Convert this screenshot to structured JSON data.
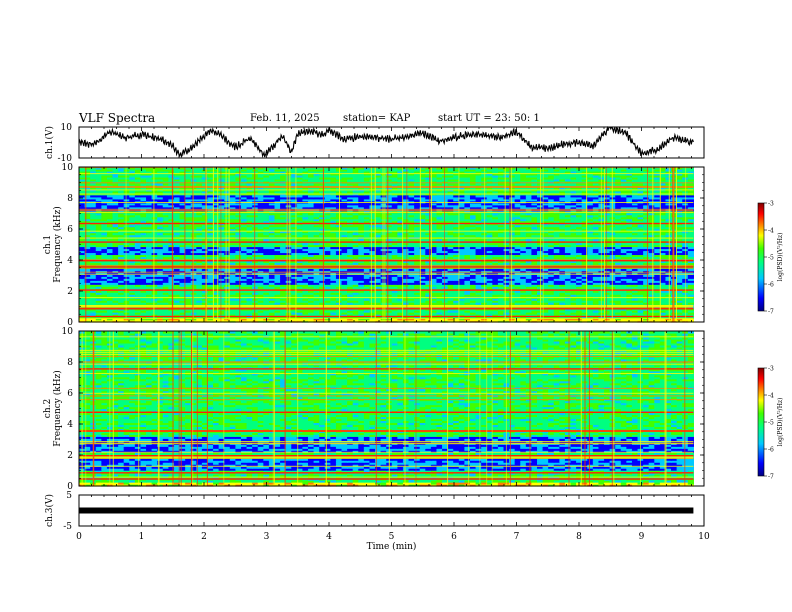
{
  "header": {
    "title": "VLF Spectra",
    "date": "Feb. 11, 2025",
    "station": "station= KAP",
    "start": "start  UT  =   23: 50: 1"
  },
  "chart_data": [
    {
      "type": "line",
      "name": "ch1-waveform",
      "ylabel": "ch.1(V)",
      "ylim": [
        -10,
        10
      ],
      "y_ticklabels": [
        "10",
        "-10"
      ],
      "xlim": [
        0,
        10
      ],
      "data_extent_min": 9.83,
      "x": [
        0,
        0.25,
        0.5,
        0.75,
        1,
        1.25,
        1.5,
        1.6,
        1.75,
        2,
        2.1,
        2.25,
        2.5,
        2.75,
        2.95,
        3,
        3.25,
        3.4,
        3.5,
        3.75,
        3.9,
        4,
        4.25,
        4.5,
        4.75,
        5,
        5.25,
        5.5,
        5.75,
        6,
        6.25,
        6.5,
        6.75,
        7,
        7.25,
        7.4,
        7.5,
        7.75,
        8,
        8.25,
        8.45,
        8.5,
        8.75,
        9,
        9.25,
        9.5,
        9.83
      ],
      "y": [
        0,
        -1,
        7,
        3,
        5,
        3,
        -2,
        -8,
        -5,
        4,
        8,
        5,
        -3,
        3,
        -8,
        -7,
        4,
        -6,
        6,
        7,
        5,
        8,
        2,
        4,
        3,
        2,
        4,
        6,
        1,
        3,
        5,
        5,
        3,
        7,
        -4,
        -3,
        -4,
        -1,
        0,
        -2,
        8,
        10,
        6,
        -7,
        -5,
        3,
        0
      ]
    },
    {
      "type": "heatmap",
      "name": "ch1-spectrogram",
      "ylabel": "ch.1",
      "ylabel2": "Frequency  (kHz)",
      "xlim": [
        0,
        10
      ],
      "ylim": [
        0,
        10
      ],
      "y_ticks": [
        0,
        2,
        4,
        6,
        8,
        10
      ],
      "data_extent_min": 9.83,
      "quiet_bands_khz": [
        [
          4.3,
          4.9
        ],
        [
          2.4,
          3.4
        ],
        [
          7.2,
          8.2
        ]
      ],
      "strong_lines_khz": [
        0.4,
        0.9,
        2.1,
        3.6,
        4.0,
        5.2,
        6.4
      ]
    },
    {
      "type": "heatmap",
      "name": "ch2-spectrogram",
      "ylabel": "ch.2",
      "ylabel2": "Frequency  (kHz)",
      "xlim": [
        0,
        10
      ],
      "ylim": [
        0,
        10
      ],
      "y_ticks": [
        0,
        2,
        4,
        6,
        8,
        10
      ],
      "data_extent_min": 9.83,
      "quiet_bands_khz": [
        [
          1.0,
          1.8
        ],
        [
          2.2,
          3.2
        ]
      ],
      "strong_lines_khz": [
        0.5,
        0.9,
        2.0,
        3.6,
        4.8,
        7.6
      ]
    },
    {
      "type": "line",
      "name": "ch3-waveform",
      "ylabel": "ch.3(V)",
      "ylim": [
        -5,
        5
      ],
      "y_ticklabels": [
        "5",
        "-5"
      ],
      "xlim": [
        0,
        10
      ],
      "x_ticks": [
        0,
        1,
        2,
        3,
        4,
        5,
        6,
        7,
        8,
        9,
        10
      ],
      "xlabel": "Time  (min)",
      "constant_value": 0,
      "data_extent_min": 9.83
    }
  ],
  "colorbars": [
    {
      "name": "ch1-colorbar",
      "range": [
        -7,
        -3
      ],
      "ticks": [
        -3,
        -4,
        -5,
        -6,
        -7
      ],
      "label": "log(PSD)(V²/Hz)"
    },
    {
      "name": "ch2-colorbar",
      "range": [
        -7,
        -3
      ],
      "ticks": [
        -3,
        -4,
        -5,
        -6,
        -7
      ],
      "label": "log(PSD)(V²/Hz)"
    }
  ],
  "colors": {
    "colormap": [
      "#000080",
      "#0000ff",
      "#00c8ff",
      "#00ff80",
      "#40ff00",
      "#ffff00",
      "#ff8000",
      "#ff0000",
      "#800000"
    ],
    "line": "#000000"
  }
}
